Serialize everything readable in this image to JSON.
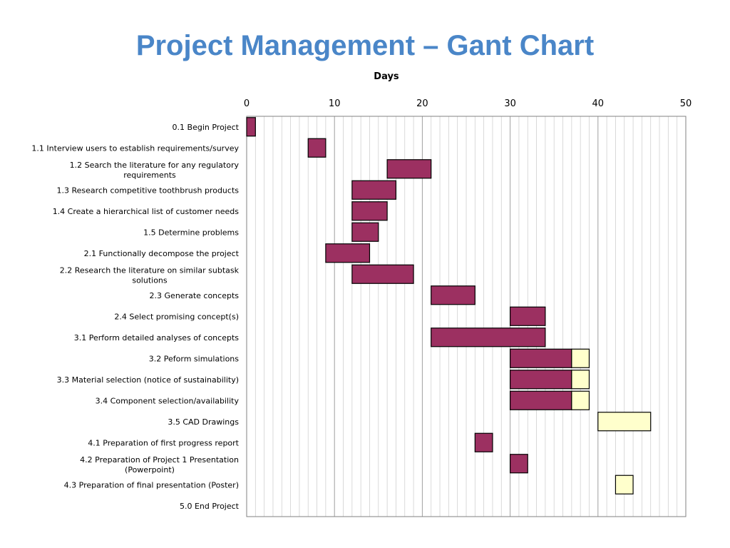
{
  "page_title": "Project Management – Gant Chart",
  "colors": {
    "title": "#4a86c8",
    "task_bar": "#9c3061",
    "slack_bar": "#ffffcc",
    "bar_border": "#000000",
    "grid_major": "#a0a0a0",
    "grid_minor": "#d0d0d0"
  },
  "chart_data": {
    "type": "gantt",
    "title": "",
    "xlabel": "Days",
    "xlim": [
      0,
      50
    ],
    "x_ticks": [
      0,
      10,
      20,
      30,
      40,
      50
    ],
    "x_minor_step": 1,
    "axis_position": "top",
    "grid": true,
    "tasks": [
      {
        "label": "0.1 Begin Project",
        "bars": [
          {
            "start": 0,
            "end": 1,
            "kind": "task"
          }
        ]
      },
      {
        "label": "1.1 Interview users to establish requirements/survey",
        "bars": [
          {
            "start": 7,
            "end": 9,
            "kind": "task"
          }
        ]
      },
      {
        "label": "1.2 Search the literature for any regulatory requirements",
        "bars": [
          {
            "start": 16,
            "end": 21,
            "kind": "task"
          }
        ]
      },
      {
        "label": "1.3 Research competitive toothbrush products",
        "bars": [
          {
            "start": 12,
            "end": 17,
            "kind": "task"
          }
        ]
      },
      {
        "label": "1.4 Create a hierarchical list of customer needs",
        "bars": [
          {
            "start": 12,
            "end": 16,
            "kind": "task"
          }
        ]
      },
      {
        "label": "1.5 Determine problems",
        "bars": [
          {
            "start": 12,
            "end": 15,
            "kind": "task"
          }
        ]
      },
      {
        "label": "2.1 Functionally decompose the project",
        "bars": [
          {
            "start": 9,
            "end": 14,
            "kind": "task"
          }
        ]
      },
      {
        "label": "2.2 Research the literature on similar subtask solutions",
        "bars": [
          {
            "start": 12,
            "end": 19,
            "kind": "task"
          }
        ]
      },
      {
        "label": "2.3 Generate concepts",
        "bars": [
          {
            "start": 21,
            "end": 26,
            "kind": "task"
          }
        ]
      },
      {
        "label": "2.4 Select promising concept(s)",
        "bars": [
          {
            "start": 30,
            "end": 34,
            "kind": "task"
          }
        ]
      },
      {
        "label": "3.1 Perform detailed analyses of concepts",
        "bars": [
          {
            "start": 21,
            "end": 34,
            "kind": "task"
          }
        ]
      },
      {
        "label": "3.2 Peform simulations",
        "bars": [
          {
            "start": 30,
            "end": 37,
            "kind": "task"
          },
          {
            "start": 37,
            "end": 39,
            "kind": "slack"
          }
        ]
      },
      {
        "label": "3.3 Material selection (notice of sustainability)",
        "bars": [
          {
            "start": 30,
            "end": 37,
            "kind": "task"
          },
          {
            "start": 37,
            "end": 39,
            "kind": "slack"
          }
        ]
      },
      {
        "label": "3.4 Component selection/availability",
        "bars": [
          {
            "start": 30,
            "end": 37,
            "kind": "task"
          },
          {
            "start": 37,
            "end": 39,
            "kind": "slack"
          }
        ]
      },
      {
        "label": "3.5 CAD Drawings",
        "bars": [
          {
            "start": 40,
            "end": 46,
            "kind": "slack"
          }
        ]
      },
      {
        "label": "4.1 Preparation of first progress report",
        "bars": [
          {
            "start": 26,
            "end": 28,
            "kind": "task"
          }
        ]
      },
      {
        "label": "4.2 Preparation of Project 1 Presentation (Powerpoint)",
        "bars": [
          {
            "start": 30,
            "end": 32,
            "kind": "task"
          }
        ]
      },
      {
        "label": "4.3 Preparation of final presentation (Poster)",
        "bars": [
          {
            "start": 42,
            "end": 44,
            "kind": "slack"
          }
        ]
      },
      {
        "label": "5.0 End Project",
        "bars": []
      }
    ]
  }
}
